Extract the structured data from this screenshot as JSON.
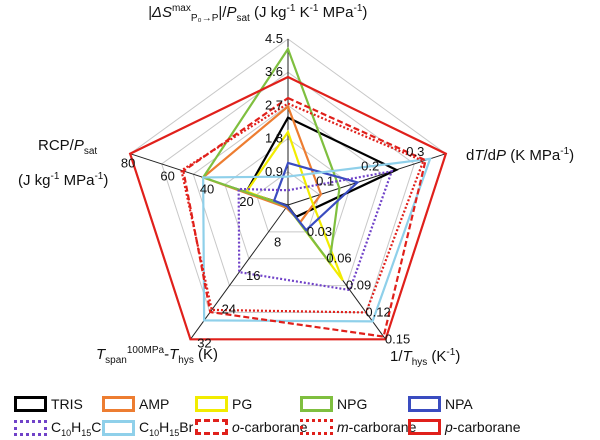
{
  "chart_data": {
    "type": "radar",
    "axes": [
      {
        "label": [
          {
            "t": "|ΔS",
            "s": "it"
          },
          {
            "t": "max",
            "s": "sup"
          },
          {
            "t": "P₀→P",
            "s": "sub"
          },
          {
            "t": "|/",
            "s": ""
          },
          {
            "t": "P",
            "s": "it"
          },
          {
            "t": "sat",
            "s": "sub"
          },
          {
            "t": " (J kg",
            "s": ""
          },
          {
            "t": "-1",
            "s": "sup"
          },
          {
            "t": " K",
            "s": ""
          },
          {
            "t": "-1",
            "s": "sup"
          },
          {
            "t": " MPa",
            "s": ""
          },
          {
            "t": "-1",
            "s": "sup"
          },
          {
            "t": ")",
            "s": ""
          }
        ],
        "max": 4.5,
        "ticks": [
          "0.9",
          "1.8",
          "2.7",
          "3.6",
          "4.5"
        ],
        "tick_values": [
          0.9,
          1.8,
          2.7,
          3.6,
          4.5
        ]
      },
      {
        "label": [
          {
            "t": "d",
            "s": ""
          },
          {
            "t": "T",
            "s": "it"
          },
          {
            "t": "/d",
            "s": ""
          },
          {
            "t": "P",
            "s": "it"
          },
          {
            "t": " (K MPa",
            "s": ""
          },
          {
            "t": "-1",
            "s": "sup"
          },
          {
            "t": ")",
            "s": ""
          }
        ],
        "max": 0.35,
        "ticks": [
          "0.1",
          "0.2",
          "0.3"
        ],
        "tick_values": [
          0.1,
          0.2,
          0.3
        ]
      },
      {
        "label": [
          {
            "t": "1/",
            "s": ""
          },
          {
            "t": "T",
            "s": "it"
          },
          {
            "t": "hys",
            "s": "sub"
          },
          {
            "t": " (K",
            "s": ""
          },
          {
            "t": "-1",
            "s": "sup"
          },
          {
            "t": ")",
            "s": ""
          }
        ],
        "max": 0.15,
        "ticks": [
          "0.03",
          "0.06",
          "0.09",
          "0.12",
          "0.15"
        ],
        "tick_values": [
          0.03,
          0.06,
          0.09,
          0.12,
          0.15
        ]
      },
      {
        "label": [
          {
            "t": "T",
            "s": "it"
          },
          {
            "t": "span",
            "s": "sub"
          },
          {
            "t": "100MPa",
            "s": "sup"
          },
          {
            "t": "-",
            "s": ""
          },
          {
            "t": "T",
            "s": "it"
          },
          {
            "t": "hys",
            "s": "sub"
          },
          {
            "t": " (K)",
            "s": ""
          }
        ],
        "max": 32,
        "ticks": [
          "8",
          "16",
          "24",
          "32"
        ],
        "tick_values": [
          8,
          16,
          24,
          32
        ]
      },
      {
        "label": [
          {
            "t": "RCP/",
            "s": ""
          },
          {
            "t": "P",
            "s": "it"
          },
          {
            "t": "sat",
            "s": "sub"
          }
        ],
        "label2": [
          {
            "t": "(J kg",
            "s": ""
          },
          {
            "t": "-1",
            "s": "sup"
          },
          {
            "t": " MPa",
            "s": ""
          },
          {
            "t": "-1",
            "s": "sup"
          },
          {
            "t": ")",
            "s": ""
          }
        ],
        "max": 80,
        "ticks": [
          "20",
          "40",
          "60",
          "80"
        ],
        "tick_values": [
          20,
          40,
          60,
          80
        ]
      }
    ],
    "grid": true,
    "legend_placement": "bottom",
    "series": [
      {
        "name": [
          {
            "t": "TRIS",
            "s": ""
          }
        ],
        "color": "#000000",
        "dash": "solid",
        "values": [
          2.37,
          0.24,
          0.013,
          0.6,
          21
        ]
      },
      {
        "name": [
          {
            "t": "AMP",
            "s": ""
          }
        ],
        "color": "#ed7d31",
        "dash": "solid",
        "values": [
          2.67,
          0.073,
          0.019,
          0.6,
          43
        ]
      },
      {
        "name": [
          {
            "t": "PG",
            "s": ""
          }
        ],
        "color": "#f2ec00",
        "dash": "solid",
        "values": [
          1.98,
          0.05,
          0.084,
          0.3,
          21
        ]
      },
      {
        "name": [
          {
            "t": "NPG",
            "s": ""
          }
        ],
        "color": "#7fbf3f",
        "dash": "solid",
        "values": [
          4.23,
          0.114,
          0.064,
          0.3,
          43
        ]
      },
      {
        "name": [
          {
            "t": "NPA",
            "s": ""
          }
        ],
        "color": "#3a4cc0",
        "dash": "solid",
        "values": [
          1.14,
          0.154,
          0.028,
          0.3,
          7
        ]
      },
      {
        "name": [
          {
            "t": "C",
            "s": ""
          },
          {
            "t": "10",
            "s": "sub"
          },
          {
            "t": "H",
            "s": ""
          },
          {
            "t": "15",
            "s": "sub"
          },
          {
            "t": "Cl",
            "s": ""
          }
        ],
        "color": "#7042c8",
        "dash": "dotted",
        "values": [
          0.4,
          0.23,
          0.095,
          16,
          25
        ]
      },
      {
        "name": [
          {
            "t": "C",
            "s": ""
          },
          {
            "t": "10",
            "s": "sub"
          },
          {
            "t": "H",
            "s": ""
          },
          {
            "t": "15",
            "s": "sub"
          },
          {
            "t": "Br",
            "s": ""
          }
        ],
        "color": "#8fd0ea",
        "dash": "solid",
        "values": [
          0.77,
          0.315,
          0.13,
          27.5,
          43
        ]
      },
      {
        "name": [
          {
            "t": "o",
            "s": "it"
          },
          {
            "t": "-carborane",
            "s": ""
          }
        ],
        "color": "#e0201b",
        "dash": "dashed",
        "values": [
          2.9,
          0.305,
          0.147,
          25.5,
          53
        ]
      },
      {
        "name": [
          {
            "t": "m",
            "s": "it"
          },
          {
            "t": "-carborane",
            "s": ""
          }
        ],
        "color": "#e0201b",
        "dash": "dotted",
        "values": [
          2.75,
          0.3,
          0.12,
          25,
          54
        ]
      },
      {
        "name": [
          {
            "t": "p",
            "s": "it"
          },
          {
            "t": "-carborane",
            "s": ""
          }
        ],
        "color": "#e0201b",
        "dash": "solid",
        "values": [
          3.47,
          0.35,
          0.15,
          32,
          80
        ]
      }
    ]
  }
}
